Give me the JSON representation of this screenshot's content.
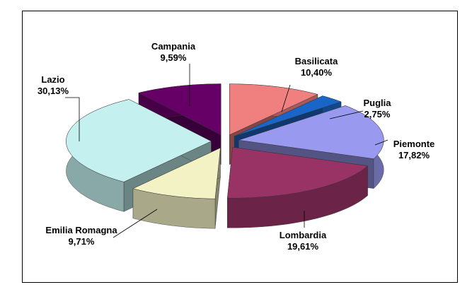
{
  "chart_data": {
    "type": "pie",
    "style": "3d-exploded",
    "legend": "none",
    "categories": [
      "Basilicata",
      "Puglia",
      "Piemonte",
      "Lombardia",
      "Emilia Romagna",
      "Lazio",
      "Campania"
    ],
    "values": [
      10.4,
      2.75,
      17.82,
      19.61,
      9.71,
      30.13,
      9.59
    ],
    "labels": [
      "10,40%",
      "2,75%",
      "17,82%",
      "19,61%",
      "9,71%",
      "30,13%",
      "9,59%"
    ],
    "colors": [
      "#f08080",
      "#1a66c8",
      "#9999f0",
      "#993366",
      "#f2f2c4",
      "#c4f0f0",
      "#660066"
    ]
  }
}
